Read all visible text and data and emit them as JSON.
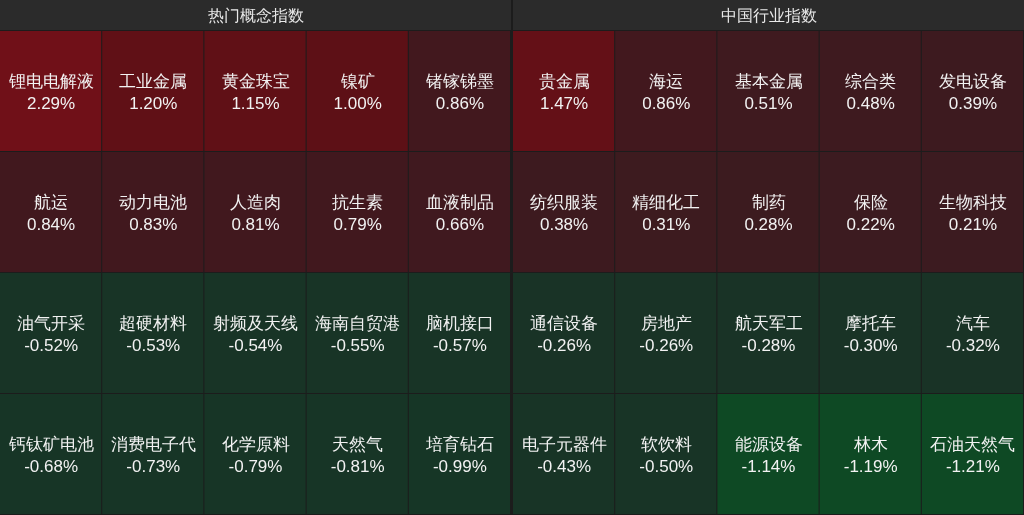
{
  "chart_data": [
    {
      "type": "other",
      "title": "热门概念指数",
      "categories": [
        "锂电电解液",
        "工业金属",
        "黄金珠宝",
        "镍矿",
        "锗镓锑墨",
        "航运",
        "动力电池",
        "人造肉",
        "抗生素",
        "血液制品",
        "油气开采",
        "超硬材料",
        "射频及天线",
        "海南自贸港",
        "脑机接口",
        "钙钛矿电池",
        "消费电子代",
        "化学原料",
        "天然气",
        "培育钻石"
      ],
      "values": [
        2.29,
        1.2,
        1.15,
        1.0,
        0.86,
        0.84,
        0.83,
        0.81,
        0.79,
        0.66,
        -0.52,
        -0.53,
        -0.54,
        -0.55,
        -0.57,
        -0.68,
        -0.73,
        -0.79,
        -0.81,
        -0.99
      ],
      "value_labels": [
        "2.29%",
        "1.20%",
        "1.15%",
        "1.00%",
        "0.86%",
        "0.84%",
        "0.83%",
        "0.81%",
        "0.79%",
        "0.66%",
        "-0.52%",
        "-0.53%",
        "-0.54%",
        "-0.55%",
        "-0.57%",
        "-0.68%",
        "-0.73%",
        "-0.79%",
        "-0.81%",
        "-0.99%"
      ]
    },
    {
      "type": "other",
      "title": "中国行业指数",
      "categories": [
        "贵金属",
        "海运",
        "基本金属",
        "综合类",
        "发电设备",
        "纺织服装",
        "精细化工",
        "制药",
        "保险",
        "生物科技",
        "通信设备",
        "房地产",
        "航天军工",
        "摩托车",
        "汽车",
        "电子元器件",
        "软饮料",
        "能源设备",
        "林木",
        "石油天然气"
      ],
      "values": [
        1.47,
        0.86,
        0.51,
        0.48,
        0.39,
        0.38,
        0.31,
        0.28,
        0.22,
        0.21,
        -0.26,
        -0.26,
        -0.28,
        -0.3,
        -0.32,
        -0.43,
        -0.5,
        -1.14,
        -1.19,
        -1.21
      ],
      "value_labels": [
        "1.47%",
        "0.86%",
        "0.51%",
        "0.48%",
        "0.39%",
        "0.38%",
        "0.31%",
        "0.28%",
        "0.22%",
        "0.21%",
        "-0.26%",
        "-0.26%",
        "-0.28%",
        "-0.30%",
        "-0.32%",
        "-0.43%",
        "-0.50%",
        "-1.14%",
        "-1.19%",
        "-1.21%"
      ]
    }
  ]
}
